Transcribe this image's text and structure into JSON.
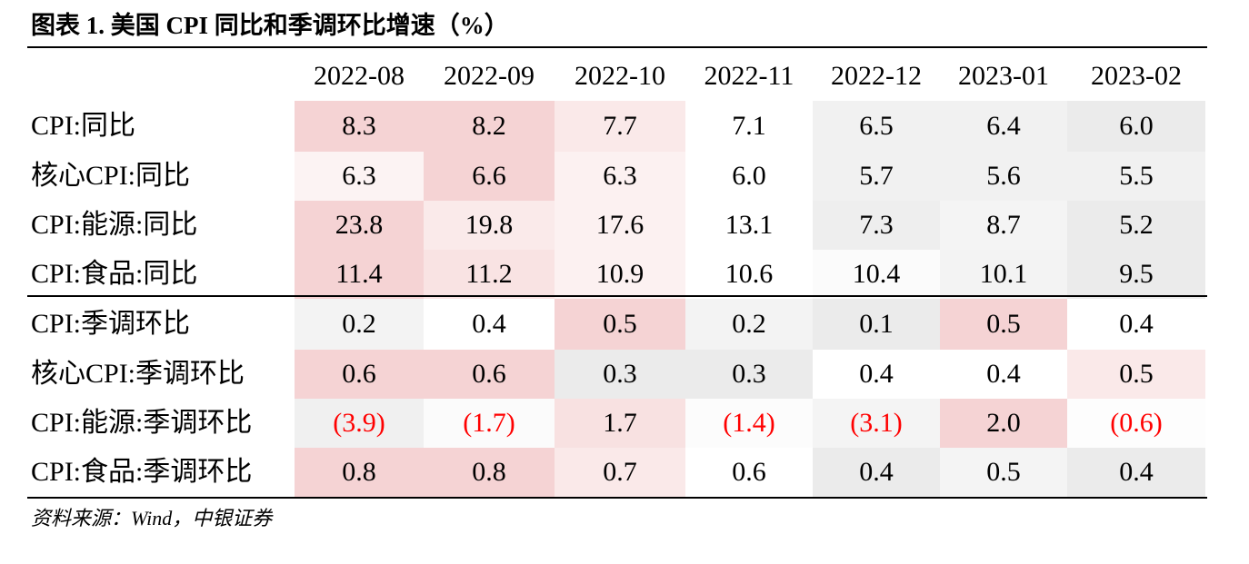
{
  "title": "图表 1. 美国 CPI 同比和季调环比增速（%）",
  "columns": [
    "2022-08",
    "2022-09",
    "2022-10",
    "2022-11",
    "2022-12",
    "2023-01",
    "2023-02"
  ],
  "yoy_rows": [
    {
      "label": "CPI:同比",
      "values": [
        "8.3",
        "8.2",
        "7.7",
        "7.1",
        "6.5",
        "6.4",
        "6.0"
      ],
      "colors": [
        "#f5d3d4",
        "#f5d3d4",
        "#fae9e9",
        "#ffffff",
        "#f1f1f1",
        "#f1f1f1",
        "#ebebeb"
      ]
    },
    {
      "label": "核心CPI:同比",
      "values": [
        "6.3",
        "6.6",
        "6.3",
        "6.0",
        "5.7",
        "5.6",
        "5.5"
      ],
      "colors": [
        "#fcf3f3",
        "#f5d3d4",
        "#fcf1f1",
        "#ffffff",
        "#f1f1f1",
        "#f1f1f1",
        "#f1f1f1"
      ]
    },
    {
      "label": "CPI:能源:同比",
      "values": [
        "23.8",
        "19.8",
        "17.6",
        "13.1",
        "7.3",
        "8.7",
        "5.2"
      ],
      "colors": [
        "#f5d3d4",
        "#faeaea",
        "#fcf1f1",
        "#ffffff",
        "#eeeeee",
        "#f4f4f4",
        "#ebebeb"
      ]
    },
    {
      "label": "CPI:食品:同比",
      "values": [
        "11.4",
        "11.2",
        "10.9",
        "10.6",
        "10.4",
        "10.1",
        "9.5"
      ],
      "colors": [
        "#f5d3d4",
        "#f9e3e3",
        "#fcf1f1",
        "#ffffff",
        "#fbfbfb",
        "#f3f3f3",
        "#ebebeb"
      ]
    }
  ],
  "mom_rows": [
    {
      "label": "CPI:季调环比",
      "values": [
        "0.2",
        "0.4",
        "0.5",
        "0.2",
        "0.1",
        "0.5",
        "0.4"
      ],
      "colors": [
        "#f3f3f3",
        "#ffffff",
        "#f5d3d4",
        "#f3f3f3",
        "#ebebeb",
        "#f5d3d4",
        "#ffffff"
      ]
    },
    {
      "label": "核心CPI:季调环比",
      "values": [
        "0.6",
        "0.6",
        "0.3",
        "0.3",
        "0.4",
        "0.4",
        "0.5"
      ],
      "colors": [
        "#f5d3d4",
        "#f5d3d4",
        "#ebebeb",
        "#ebebeb",
        "#ffffff",
        "#ffffff",
        "#fae9e9"
      ]
    },
    {
      "label": "CPI:能源:季调环比",
      "values": [
        "(3.9)",
        "(1.7)",
        "1.7",
        "(1.4)",
        "(3.1)",
        "2.0",
        "(0.6)"
      ],
      "colors": [
        "#f0f0f0",
        "#fbfbfb",
        "#f8e1e1",
        "#fcfcfc",
        "#f4f4f4",
        "#f5d3d4",
        "#fdfdfd"
      ]
    },
    {
      "label": "CPI:食品:季调环比",
      "values": [
        "0.8",
        "0.8",
        "0.7",
        "0.6",
        "0.4",
        "0.5",
        "0.4"
      ],
      "colors": [
        "#f5d3d4",
        "#f5d3d4",
        "#fae9e9",
        "#ffffff",
        "#ebebeb",
        "#f4f4f4",
        "#ebebeb"
      ]
    }
  ],
  "negative_color": "#ff0000",
  "source": "资料来源：Wind，中银证券"
}
